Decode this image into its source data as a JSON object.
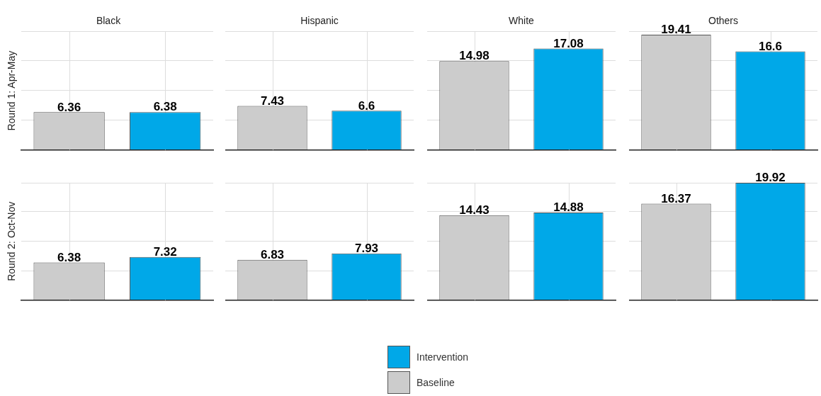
{
  "chart_data": [
    {
      "type": "bar",
      "title": "Black",
      "ylabel": "Round 1: Apr-May",
      "categories": [
        null
      ],
      "series": [
        {
          "color": "#cccccc",
          "values": [
            6.36
          ]
        },
        {
          "color": "#00a8e8",
          "values": [
            6.38
          ]
        }
      ],
      "grid": true,
      "data_labels": true
    },
    {
      "type": "bar",
      "title": "Hispanic",
      "categories": [
        null
      ],
      "series": [
        {
          "color": "#cccccc",
          "values": [
            7.43
          ]
        },
        {
          "color": "#00a8e8",
          "values": [
            6.6
          ]
        }
      ],
      "grid": true,
      "data_labels": true
    },
    {
      "type": "bar",
      "title": "White",
      "categories": [
        null
      ],
      "series": [
        {
          "color": "#cccccc",
          "values": [
            14.98
          ]
        },
        {
          "color": "#00a8e8",
          "values": [
            17.08
          ]
        }
      ],
      "grid": true,
      "data_labels": true
    },
    {
      "type": "bar",
      "title": "Others",
      "categories": [
        null
      ],
      "series": [
        {
          "color": "#cccccc",
          "values": [
            19.41
          ]
        },
        {
          "color": "#00a8e8",
          "values": [
            16.6
          ]
        }
      ],
      "grid": true,
      "data_labels": true
    },
    {
      "type": "bar",
      "ylabel": "Round 2: Oct-Nov",
      "categories": [
        null
      ],
      "series": [
        {
          "color": "#cccccc",
          "values": [
            6.38
          ]
        },
        {
          "color": "#00a8e8",
          "values": [
            7.32
          ]
        }
      ],
      "grid": true,
      "data_labels": true
    },
    {
      "type": "bar",
      "categories": [
        null
      ],
      "series": [
        {
          "color": "#cccccc",
          "values": [
            6.83
          ]
        },
        {
          "color": "#00a8e8",
          "values": [
            7.93
          ]
        }
      ],
      "grid": true,
      "data_labels": true
    },
    {
      "type": "bar",
      "categories": [
        null
      ],
      "series": [
        {
          "color": "#cccccc",
          "values": [
            14.43
          ]
        },
        {
          "color": "#00a8e8",
          "values": [
            14.88
          ]
        }
      ],
      "grid": true,
      "data_labels": true
    },
    {
      "type": "bar",
      "categories": [
        null
      ],
      "series": [
        {
          "name": "Baseline",
          "color": "#cccccc",
          "values": [
            16.37
          ]
        },
        {
          "name": "Intervention",
          "color": "#00a8e8",
          "values": [
            19.92
          ]
        }
      ],
      "grid": true,
      "data_labels": true,
      "legend": "bottom"
    }
  ]
}
